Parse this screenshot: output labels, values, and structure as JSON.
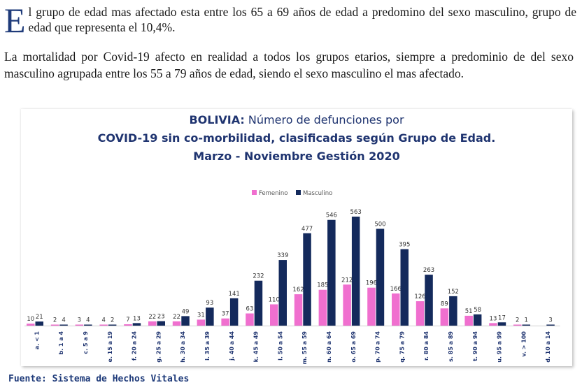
{
  "paragraph1": {
    "dropcap": "E",
    "text": "l grupo de edad mas afectado esta entre los 65 a 69 años de edad a predomino del sexo masculino, grupo de edad que representa el 10,4%."
  },
  "paragraph2": "La mortalidad por Covid-19 afecto en realidad a todos los grupos etarios, siempre a predominio de del sexo masculino agrupada entre los 55 a  79 años de edad, siendo el sexo masculino el mas afectado.",
  "source": "Fuente: Sistema de Hechos Vitales",
  "colors": {
    "femenino": "#f06fcf",
    "masculino": "#142a5c",
    "title": "#1f3470",
    "dropcap": "#1f3b7a"
  },
  "chart_data": {
    "type": "bar",
    "title": "BOLIVIA: Número de defunciones por",
    "subtitle": "COVID-19  sin co-morbilidad, clasificadas según Grupo de Edad.",
    "subtitle2": "Marzo - Noviembre Gestión 2020",
    "legend_position": "top-center",
    "categories": [
      "a. < 1",
      "b. 1 a 4",
      "c. 5 a 9",
      "e. 15 a 19",
      "f. 20 a 24",
      "g. 25 a 29",
      "h. 30 a 34",
      "i. 35 a 39",
      "j. 40 a 44",
      "k. 45 a 49",
      "l. 50 a 54",
      "m. 55 a 59",
      "n. 60 a 64",
      "o. 65 a 69",
      "p. 70 a 74",
      "q. 75 a 79",
      "r. 80 a 84",
      "s. 85 a 89",
      "t. 90 a 94",
      "u. 95 a 99",
      "v. > 100",
      "d. 10 a 14"
    ],
    "series": [
      {
        "name": "Femenino",
        "values": [
          10,
          2,
          3,
          4,
          7,
          22,
          22,
          31,
          37,
          63,
          110,
          162,
          185,
          212,
          196,
          166,
          126,
          89,
          51,
          13,
          2,
          null
        ]
      },
      {
        "name": "Masculino",
        "values": [
          21,
          4,
          4,
          2,
          13,
          23,
          49,
          93,
          141,
          232,
          339,
          477,
          546,
          563,
          500,
          395,
          263,
          152,
          58,
          17,
          1,
          3
        ]
      }
    ]
  }
}
